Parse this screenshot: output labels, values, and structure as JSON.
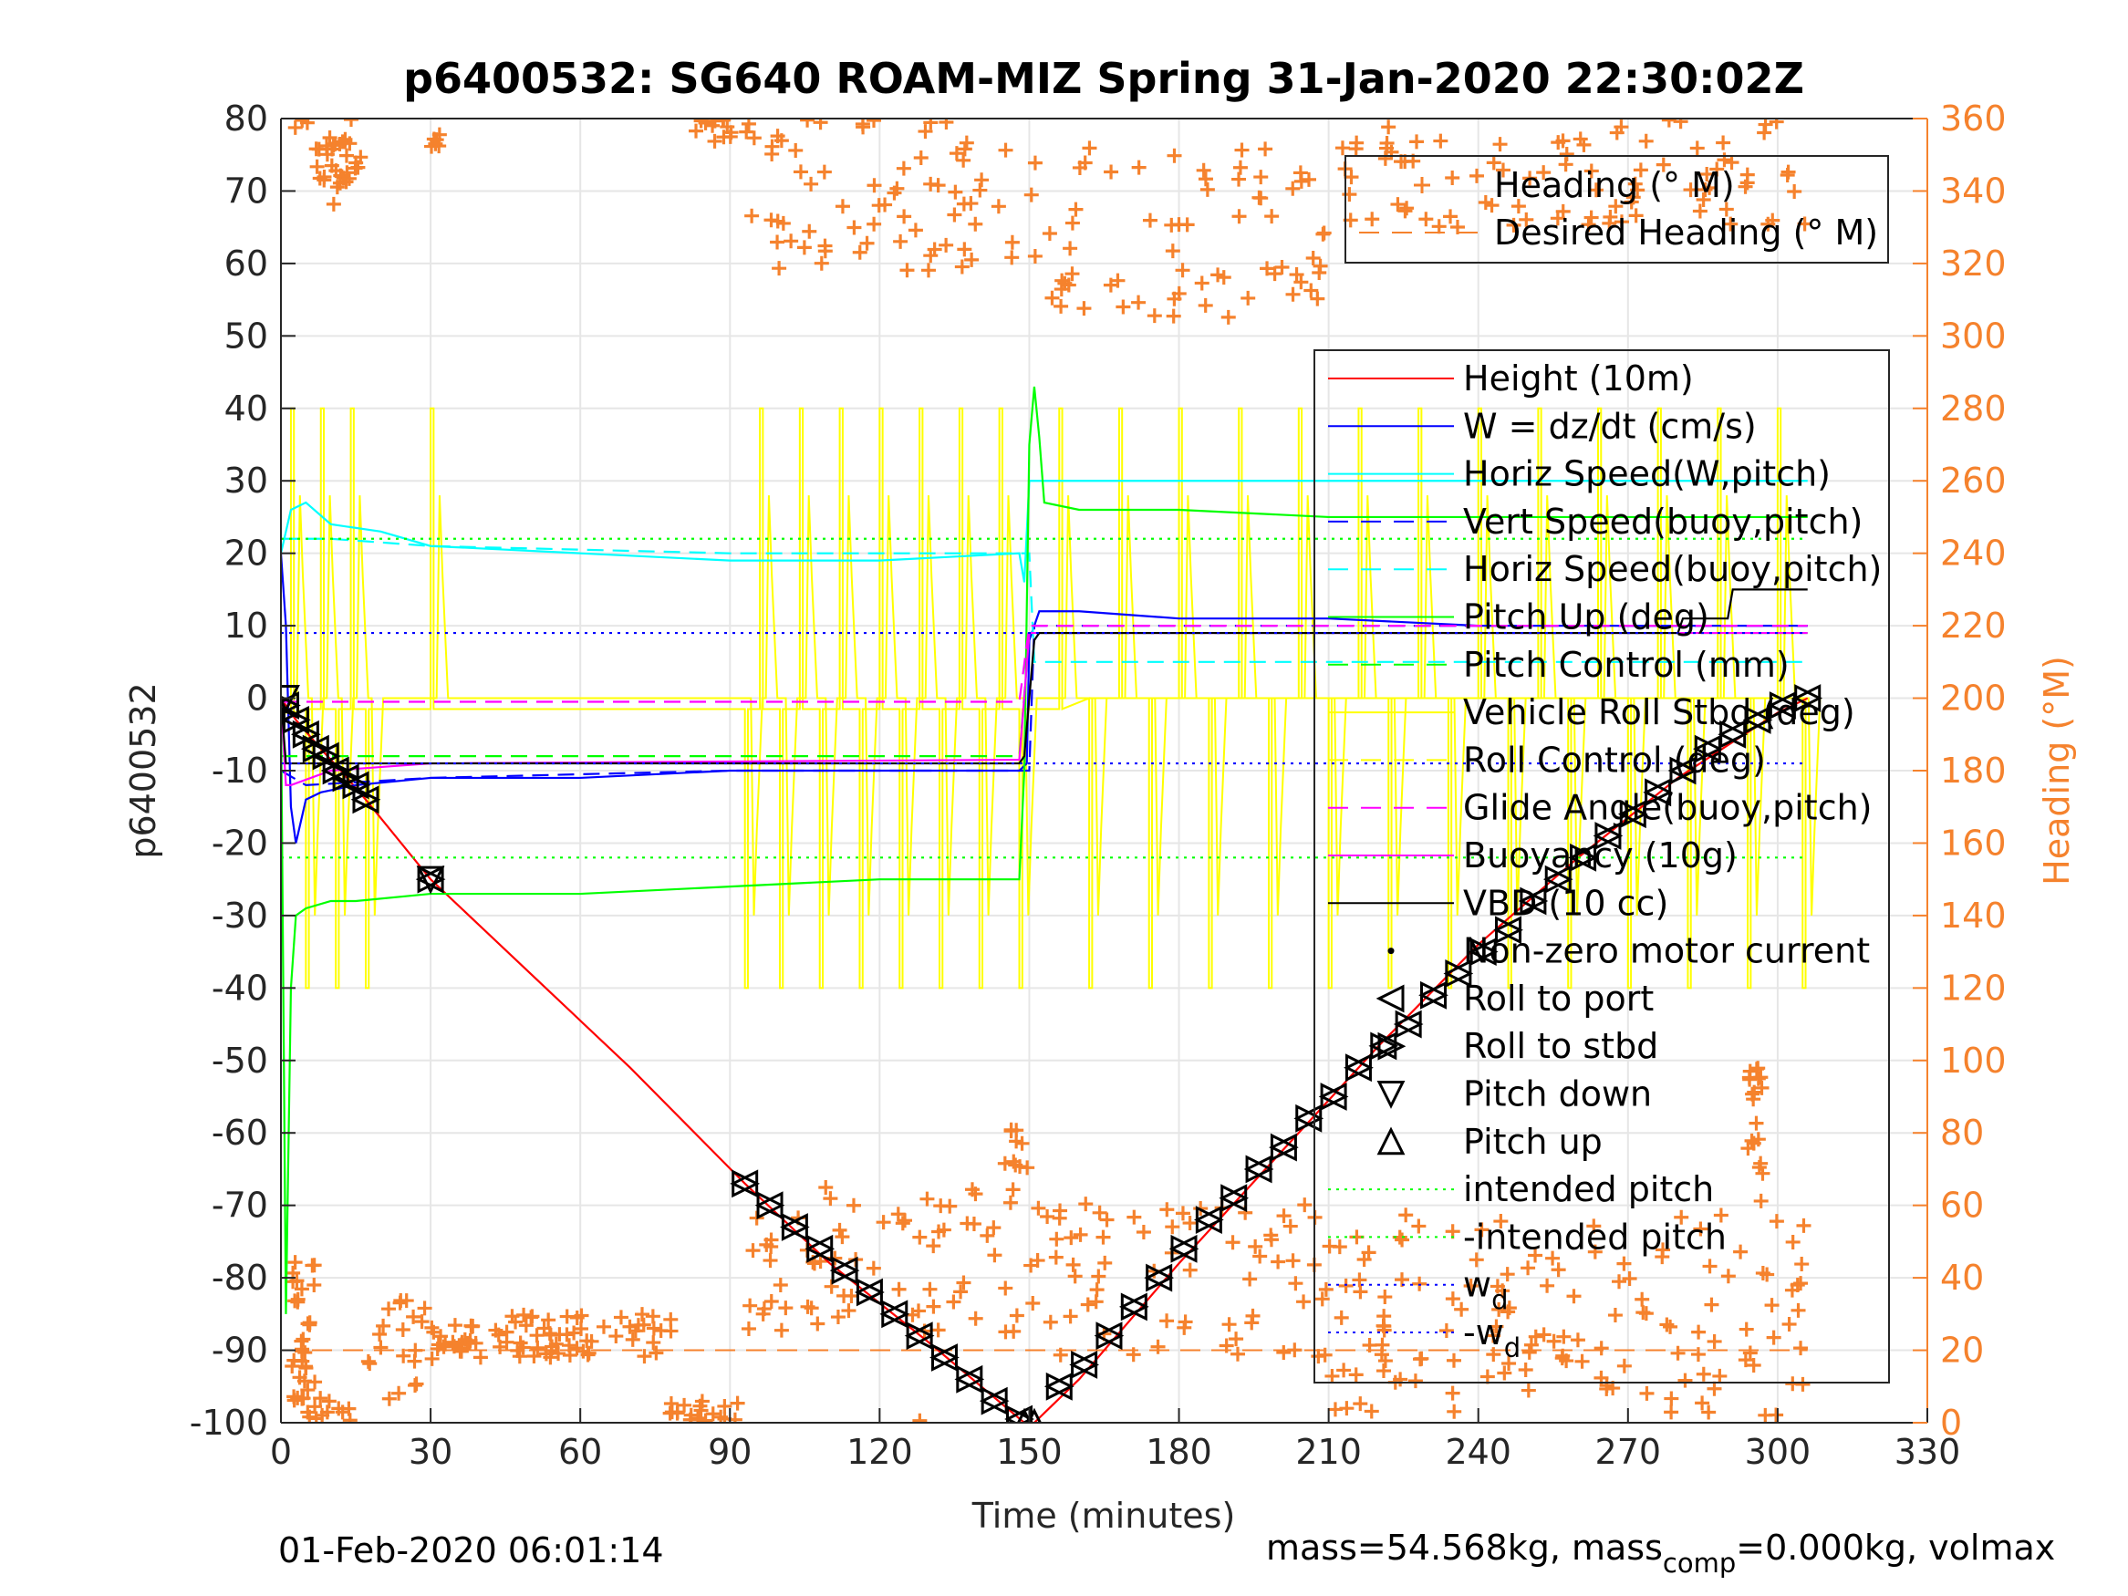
{
  "chart_data": {
    "type": "line",
    "title": "p6400532: SG640 ROAM-MIZ Spring 31-Jan-2020 22:30:02Z",
    "xlabel": "Time (minutes)",
    "ylabel": "p6400532",
    "y2label": "Heading (°M)",
    "xlim": [
      0,
      330
    ],
    "ylim": [
      -100,
      80
    ],
    "y2lim": [
      0,
      360
    ],
    "xticks": [
      "0",
      "30",
      "60",
      "90",
      "120",
      "150",
      "180",
      "210",
      "240",
      "270",
      "300",
      "330"
    ],
    "yticks": [
      "80",
      "70",
      "60",
      "50",
      "40",
      "30",
      "20",
      "10",
      "0",
      "-10",
      "-20",
      "-30",
      "-40",
      "-50",
      "-60",
      "-70",
      "-80",
      "-90",
      "-100"
    ],
    "y2ticks": [
      "360",
      "340",
      "320",
      "300",
      "280",
      "260",
      "240",
      "220",
      "200",
      "180",
      "160",
      "140",
      "120",
      "100",
      "80",
      "60",
      "40",
      "20",
      "0"
    ],
    "grid": true,
    "footer_left": "01-Feb-2020 06:01:14",
    "footer_right": {
      "pre": "mass=54.568kg, mass",
      "sub": "comp",
      "post": "=0.000kg, volmax"
    },
    "legend_heading": [
      {
        "name": "Heading (° M)",
        "color": "#f5822d",
        "style": "plus"
      },
      {
        "name": "Desired Heading (° M)",
        "color": "#f5822d",
        "style": "dash"
      }
    ],
    "legend_main": [
      {
        "name": "Height (10m)",
        "color": "#ff0000",
        "style": "solid"
      },
      {
        "name": "W = dz/dt (cm/s)",
        "color": "#0000ff",
        "style": "solid"
      },
      {
        "name": "Horiz Speed(W,pitch)",
        "color": "#00ffff",
        "style": "solid"
      },
      {
        "name": "Vert Speed(buoy,pitch)",
        "color": "#0000ff",
        "style": "dash"
      },
      {
        "name": "Horiz Speed(buoy,pitch)",
        "color": "#00ffff",
        "style": "dash"
      },
      {
        "name": "Pitch Up (deg)",
        "color": "#00ff00",
        "style": "solid"
      },
      {
        "name": "Pitch Control (mm)",
        "color": "#00ff00",
        "style": "dash"
      },
      {
        "name": "Vehicle Roll Stbd (deg)",
        "color": "#ffff00",
        "style": "solid"
      },
      {
        "name": "Roll Control (deg)",
        "color": "#ffff00",
        "style": "dash"
      },
      {
        "name": "Glide Angle(buoy,pitch)",
        "color": "#ff00ff",
        "style": "dash"
      },
      {
        "name": "Buoyancy (10g)",
        "color": "#ff00ff",
        "style": "solid"
      },
      {
        "name": "VBD (10 cc)",
        "color": "#000000",
        "style": "solid"
      },
      {
        "name": "Non-zero motor current",
        "color": "#000000",
        "style": "dot"
      },
      {
        "name": "Roll to port",
        "color": "#000000",
        "style": "tri-left"
      },
      {
        "name": "Roll to stbd",
        "color": "#000000",
        "style": "tri-right"
      },
      {
        "name": "Pitch down",
        "color": "#000000",
        "style": "tri-down"
      },
      {
        "name": "Pitch up",
        "color": "#000000",
        "style": "tri-up"
      },
      {
        "name": "intended pitch",
        "color": "#00ff00",
        "style": "dotted"
      },
      {
        "name": "-intended pitch",
        "color": "#00ff00",
        "style": "dotted"
      },
      {
        "name": "w",
        "sub": "d",
        "color": "#0000ff",
        "style": "dotted"
      },
      {
        "name": "-w",
        "sub": "d",
        "color": "#0000ff",
        "style": "dotted"
      }
    ],
    "series": [
      {
        "name": "Height (10m)",
        "color": "#ff0000",
        "x": [
          0,
          3,
          8,
          12,
          17,
          30,
          50,
          70,
          93,
          110,
          130,
          149,
          151,
          160,
          180,
          200,
          220,
          240,
          260,
          280,
          300,
          306
        ],
        "y": [
          0,
          -3,
          -7,
          -10,
          -14,
          -25,
          -38,
          -51,
          -67,
          -78,
          -89,
          -100,
          -100,
          -94,
          -78,
          -63,
          -48,
          -34,
          -22,
          -11,
          -2,
          0
        ]
      },
      {
        "name": "W = dz/dt (cm/s)",
        "color": "#0000ff",
        "x": [
          0,
          1,
          2,
          3,
          5,
          8,
          15,
          30,
          60,
          90,
          120,
          148,
          149.5,
          150,
          152,
          160,
          180,
          210,
          240,
          270,
          300,
          306
        ],
        "y": [
          20,
          10,
          -15,
          -20,
          -14,
          -13,
          -12,
          -11,
          -11,
          -10,
          -10,
          -10,
          -9,
          8,
          12,
          12,
          11,
          11,
          10,
          10,
          10,
          10
        ]
      },
      {
        "name": "Horiz Speed(W,pitch)",
        "color": "#00ffff",
        "x": [
          0,
          2,
          5,
          10,
          20,
          30,
          60,
          90,
          120,
          148,
          149,
          150,
          152,
          306
        ],
        "y": [
          20,
          26,
          27,
          24,
          23,
          21,
          20,
          19,
          19,
          20,
          16,
          30,
          30,
          30
        ]
      },
      {
        "name": "Vert Speed(buoy,pitch)",
        "color": "#0000ff",
        "dash": "18,10",
        "x": [
          0,
          5,
          30,
          90,
          150,
          151,
          306
        ],
        "y": [
          -10,
          -12,
          -11,
          -10,
          -10,
          10,
          10
        ]
      },
      {
        "name": "Horiz Speed(buoy,pitch)",
        "color": "#00ffff",
        "dash": "18,10",
        "x": [
          0,
          10,
          30,
          90,
          150,
          151,
          306
        ],
        "y": [
          22,
          22,
          21,
          20,
          20,
          5,
          5
        ]
      },
      {
        "name": "Pitch Up (deg)",
        "color": "#00ff00",
        "x": [
          0,
          1,
          2,
          3,
          5,
          10,
          15,
          30,
          60,
          90,
          120,
          148,
          149,
          150,
          151,
          152,
          153,
          160,
          180,
          210,
          240,
          270,
          300,
          306
        ],
        "y": [
          0,
          -85,
          -40,
          -30,
          -29,
          -28,
          -28,
          -27,
          -27,
          -26,
          -25,
          -25,
          -10,
          35,
          43,
          36,
          27,
          26,
          26,
          25,
          25,
          25,
          25,
          25
        ]
      },
      {
        "name": "Pitch Control (mm)",
        "color": "#00ff00",
        "dash": "18,10",
        "x": [
          0,
          5,
          148,
          150,
          306
        ],
        "y": [
          -8,
          -8,
          -8,
          9,
          9
        ]
      },
      {
        "name": "Glide Angle(buoy,pitch)",
        "color": "#ff00ff",
        "dash": "18,10",
        "x": [
          0,
          148,
          150,
          306
        ],
        "y": [
          -0.5,
          -0.5,
          10,
          10
        ]
      },
      {
        "name": "Buoyancy (10g)",
        "color": "#ff00ff",
        "x": [
          0,
          1,
          2,
          10,
          30,
          148,
          150,
          306
        ],
        "y": [
          0,
          -12,
          -12,
          -10,
          -9,
          -8.5,
          9,
          9
        ]
      },
      {
        "name": "VBD (10 cc)",
        "color": "#000000",
        "x": [
          0,
          1,
          2,
          148,
          149,
          151,
          152,
          280,
          281,
          290,
          291,
          306
        ],
        "y": [
          0,
          -9,
          -9,
          -9,
          -8,
          8,
          9,
          9,
          11,
          11,
          15,
          15
        ]
      },
      {
        "name": "intended pitch",
        "color": "#00ff00",
        "dash": "3,6",
        "x": [
          0,
          306
        ],
        "y": [
          22,
          22
        ]
      },
      {
        "name": "-intended pitch",
        "color": "#00ff00",
        "dash": "3,6",
        "x": [
          0,
          306
        ],
        "y": [
          -22,
          -22
        ]
      },
      {
        "name": "w_d",
        "color": "#0000ff",
        "dash": "3,6",
        "x": [
          0,
          306
        ],
        "y": [
          9,
          9
        ]
      },
      {
        "name": "-w_d",
        "color": "#0000ff",
        "dash": "3,6",
        "x": [
          0,
          306
        ],
        "y": [
          -9,
          -9
        ]
      }
    ],
    "roll_control_switch_times": [
      2,
      5,
      8,
      11,
      14,
      17,
      30,
      93,
      96,
      100,
      104,
      108,
      112,
      116,
      120,
      124,
      128,
      132,
      136,
      140,
      144,
      148,
      156,
      162,
      168,
      174,
      180,
      186,
      192,
      198,
      204,
      210,
      216,
      222,
      228,
      234,
      240,
      246,
      252,
      258,
      264,
      270,
      276,
      282,
      288,
      294,
      300,
      305
    ],
    "roll_markers": [
      {
        "x": 1,
        "y": -1
      },
      {
        "x": 3,
        "y": -3
      },
      {
        "x": 5,
        "y": -5
      },
      {
        "x": 7,
        "y": -7
      },
      {
        "x": 9,
        "y": -8
      },
      {
        "x": 11,
        "y": -10
      },
      {
        "x": 13,
        "y": -11
      },
      {
        "x": 15,
        "y": -12
      },
      {
        "x": 17,
        "y": -14
      },
      {
        "x": 30,
        "y": -25
      },
      {
        "x": 93,
        "y": -67
      },
      {
        "x": 98,
        "y": -70
      },
      {
        "x": 103,
        "y": -73
      },
      {
        "x": 108,
        "y": -76
      },
      {
        "x": 113,
        "y": -79
      },
      {
        "x": 118,
        "y": -82
      },
      {
        "x": 123,
        "y": -85
      },
      {
        "x": 128,
        "y": -88
      },
      {
        "x": 133,
        "y": -91
      },
      {
        "x": 138,
        "y": -94
      },
      {
        "x": 143,
        "y": -97
      },
      {
        "x": 148,
        "y": -99.5
      },
      {
        "x": 156,
        "y": -95
      },
      {
        "x": 161,
        "y": -92
      },
      {
        "x": 166,
        "y": -88
      },
      {
        "x": 171,
        "y": -84
      },
      {
        "x": 176,
        "y": -80
      },
      {
        "x": 181,
        "y": -76
      },
      {
        "x": 186,
        "y": -72
      },
      {
        "x": 191,
        "y": -69
      },
      {
        "x": 196,
        "y": -65
      },
      {
        "x": 201,
        "y": -62
      },
      {
        "x": 206,
        "y": -58
      },
      {
        "x": 211,
        "y": -55
      },
      {
        "x": 216,
        "y": -51
      },
      {
        "x": 221,
        "y": -48
      },
      {
        "x": 226,
        "y": -45
      },
      {
        "x": 231,
        "y": -41
      },
      {
        "x": 236,
        "y": -38
      },
      {
        "x": 241,
        "y": -35
      },
      {
        "x": 246,
        "y": -32
      },
      {
        "x": 251,
        "y": -28
      },
      {
        "x": 256,
        "y": -25
      },
      {
        "x": 261,
        "y": -22
      },
      {
        "x": 266,
        "y": -19
      },
      {
        "x": 271,
        "y": -16
      },
      {
        "x": 276,
        "y": -13
      },
      {
        "x": 281,
        "y": -10
      },
      {
        "x": 286,
        "y": -7
      },
      {
        "x": 291,
        "y": -5
      },
      {
        "x": 296,
        "y": -3
      },
      {
        "x": 301,
        "y": -1
      },
      {
        "x": 306,
        "y": 0
      }
    ],
    "pitch_markers": [
      {
        "x": 1,
        "y": 0,
        "dir": "down"
      },
      {
        "x": 30,
        "y": -25,
        "dir": "down"
      },
      {
        "x": 149,
        "y": -100,
        "dir": "up"
      },
      {
        "x": 151,
        "y": -100,
        "dir": "up"
      }
    ],
    "heading_clusters": [
      {
        "x0": 2,
        "x1": 7,
        "hdeg": 20,
        "spread": 25,
        "n": 40
      },
      {
        "x0": 7,
        "x1": 17,
        "hdeg": 355,
        "spread": 12,
        "n": 30
      },
      {
        "x0": 10,
        "x1": 17,
        "hdeg": 345,
        "spread": 10,
        "n": 12
      },
      {
        "x0": 17,
        "x1": 32,
        "hdeg": 20,
        "spread": 14,
        "n": 25
      },
      {
        "x0": 30,
        "x1": 32,
        "hdeg": 355,
        "spread": 4,
        "n": 6
      },
      {
        "x0": 32,
        "x1": 80,
        "hdeg": 24,
        "spread": 6,
        "n": 80
      },
      {
        "x0": 78,
        "x1": 92,
        "hdeg": 3,
        "spread": 4,
        "n": 20
      },
      {
        "x0": 82,
        "x1": 95,
        "hdeg": 357,
        "spread": 4,
        "n": 14
      },
      {
        "x0": 93,
        "x1": 148,
        "hdeg": 45,
        "spread": 20,
        "n": 70
      },
      {
        "x0": 93,
        "x1": 148,
        "hdeg": 340,
        "spread": 22,
        "n": 70
      },
      {
        "x0": 145,
        "x1": 150,
        "hdeg": 75,
        "spread": 6,
        "n": 10
      },
      {
        "x0": 150,
        "x1": 210,
        "hdeg": 40,
        "spread": 22,
        "n": 70
      },
      {
        "x0": 150,
        "x1": 210,
        "hdeg": 330,
        "spread": 25,
        "n": 70
      },
      {
        "x0": 210,
        "x1": 306,
        "hdeg": 30,
        "spread": 28,
        "n": 140
      },
      {
        "x0": 210,
        "x1": 306,
        "hdeg": 345,
        "spread": 15,
        "n": 90
      },
      {
        "x0": 294,
        "x1": 297,
        "hdeg": 80,
        "spread": 20,
        "n": 20
      }
    ]
  }
}
